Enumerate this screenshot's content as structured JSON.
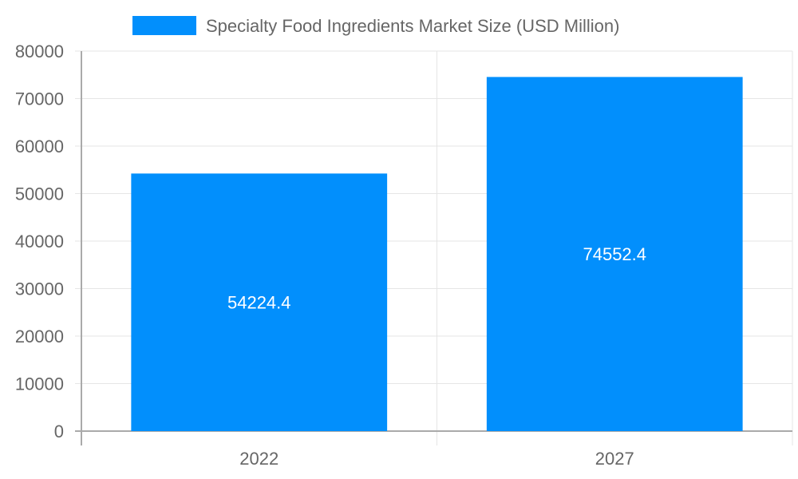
{
  "chart_data": {
    "type": "bar",
    "title": "",
    "categories": [
      "2022",
      "2027"
    ],
    "series": [
      {
        "name": "Specialty Food Ingredients Market Size (USD Million)",
        "values": [
          54224.4,
          74552.4
        ],
        "color": "#028ffc"
      }
    ],
    "data_labels": [
      "54224.4",
      "74552.4"
    ],
    "xlabel": "",
    "ylabel": "",
    "ylim": [
      0,
      80000
    ],
    "yticks": [
      0,
      10000,
      20000,
      30000,
      40000,
      50000,
      60000,
      70000,
      80000
    ],
    "ytick_labels": [
      "0",
      "10000",
      "20000",
      "30000",
      "40000",
      "50000",
      "60000",
      "70000",
      "80000"
    ],
    "grid": true,
    "legend_position": "top"
  },
  "legend": {
    "label": "Specialty Food Ingredients Market Size (USD Million)",
    "swatch_color": "#028ffc"
  },
  "colors": {
    "bar": "#028ffc",
    "grid": "#e5e5e5",
    "axis": "#aaaaaa",
    "text": "#666666"
  }
}
